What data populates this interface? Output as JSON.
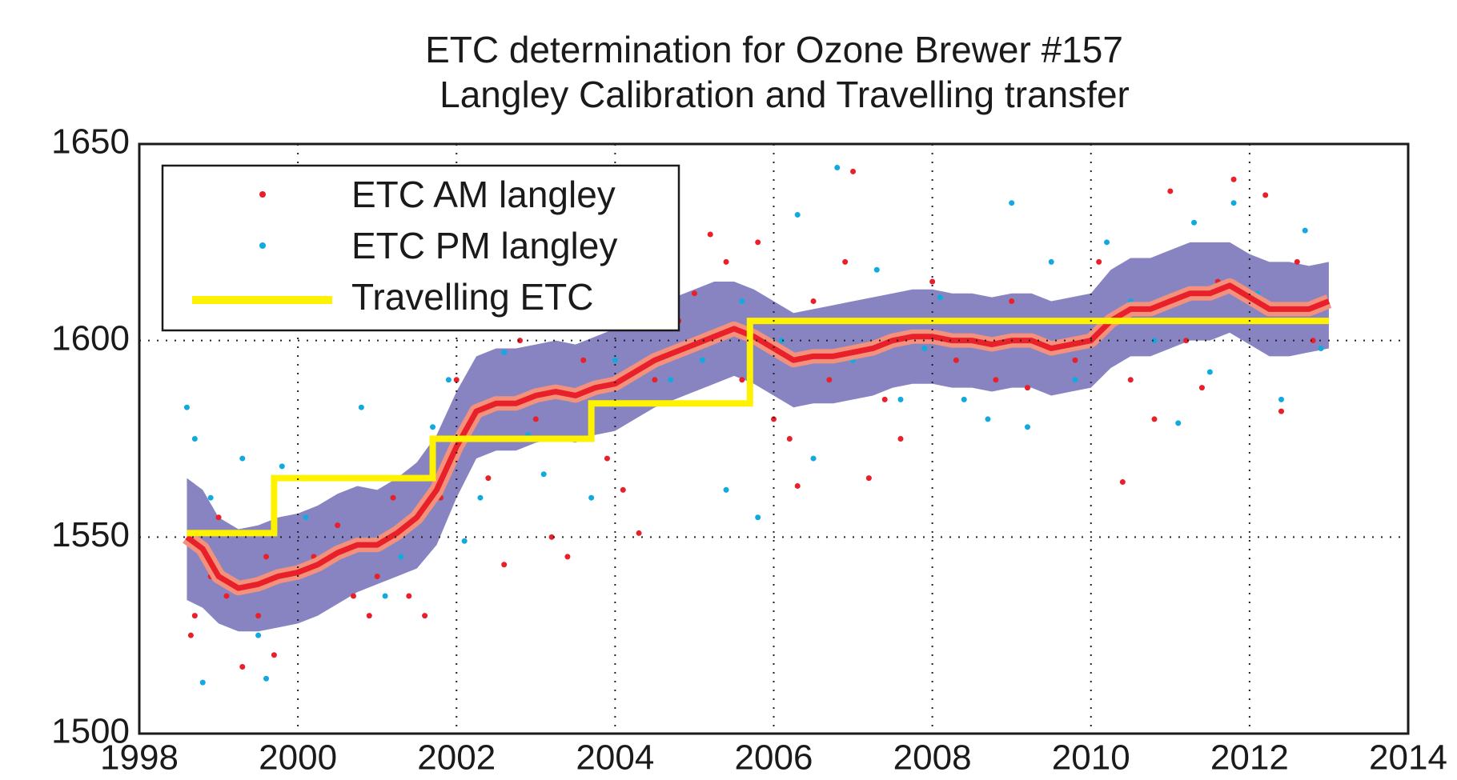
{
  "chart_data": {
    "type": "scatter",
    "title": [
      "ETC determination for Ozone Brewer #157",
      "Langley Calibration  and Travelling transfer"
    ],
    "xlim": [
      1998,
      2014
    ],
    "xticks": [
      1998,
      2000,
      2002,
      2004,
      2006,
      2008,
      2010,
      2012,
      2014
    ],
    "ylim": [
      1500,
      1650
    ],
    "yticks": [
      1500,
      1550,
      1600,
      1650
    ],
    "grid": true,
    "legend": "upper left",
    "band": {
      "color": "#8884c2",
      "x": [
        1998.6,
        1998.8,
        1999.0,
        1999.25,
        1999.5,
        1999.75,
        2000.0,
        2000.25,
        2000.5,
        2000.75,
        2001.0,
        2001.25,
        2001.5,
        2001.75,
        2002.0,
        2002.25,
        2002.5,
        2002.75,
        2003.0,
        2003.25,
        2003.5,
        2003.75,
        2004.0,
        2004.25,
        2004.5,
        2004.75,
        2005.0,
        2005.25,
        2005.5,
        2005.75,
        2006.0,
        2006.25,
        2006.5,
        2006.75,
        2007.0,
        2007.25,
        2007.5,
        2007.75,
        2008.0,
        2008.25,
        2008.5,
        2008.75,
        2009.0,
        2009.25,
        2009.5,
        2009.75,
        2010.0,
        2010.25,
        2010.5,
        2010.75,
        2011.0,
        2011.25,
        2011.5,
        2011.75,
        2012.0,
        2012.25,
        2012.5,
        2012.75,
        2013.0
      ],
      "upper": [
        1565,
        1562,
        1555,
        1552,
        1553,
        1555,
        1556,
        1558,
        1561,
        1563,
        1562,
        1565,
        1569,
        1576,
        1587,
        1596,
        1598,
        1598,
        1599,
        1600,
        1599,
        1601,
        1603,
        1606,
        1609,
        1611,
        1613,
        1615,
        1615,
        1613,
        1610,
        1607,
        1608,
        1609,
        1610,
        1611,
        1612,
        1613,
        1613,
        1612,
        1612,
        1611,
        1612,
        1612,
        1610,
        1611,
        1612,
        1618,
        1621,
        1621,
        1623,
        1625,
        1625,
        1625,
        1622,
        1620,
        1620,
        1619,
        1620
      ],
      "lower": [
        1534,
        1532,
        1528,
        1526,
        1526,
        1527,
        1528,
        1530,
        1533,
        1536,
        1538,
        1540,
        1542,
        1548,
        1560,
        1570,
        1572,
        1572,
        1574,
        1575,
        1574,
        1576,
        1577,
        1580,
        1583,
        1585,
        1587,
        1589,
        1591,
        1589,
        1586,
        1583,
        1584,
        1584,
        1585,
        1586,
        1588,
        1589,
        1589,
        1588,
        1588,
        1587,
        1588,
        1588,
        1586,
        1587,
        1588,
        1593,
        1596,
        1596,
        1598,
        1600,
        1600,
        1602,
        1599,
        1596,
        1596,
        1597,
        1598
      ]
    },
    "mean": {
      "color": "#e8202a",
      "x": [
        1998.6,
        1998.8,
        1999.0,
        1999.25,
        1999.5,
        1999.75,
        2000.0,
        2000.25,
        2000.5,
        2000.75,
        2001.0,
        2001.25,
        2001.5,
        2001.75,
        2002.0,
        2002.25,
        2002.5,
        2002.75,
        2003.0,
        2003.25,
        2003.5,
        2003.75,
        2004.0,
        2004.25,
        2004.5,
        2004.75,
        2005.0,
        2005.25,
        2005.5,
        2005.75,
        2006.0,
        2006.25,
        2006.5,
        2006.75,
        2007.0,
        2007.25,
        2007.5,
        2007.75,
        2008.0,
        2008.25,
        2008.5,
        2008.75,
        2009.0,
        2009.25,
        2009.5,
        2009.75,
        2010.0,
        2010.25,
        2010.5,
        2010.75,
        2011.0,
        2011.25,
        2011.5,
        2011.75,
        2012.0,
        2012.25,
        2012.5,
        2012.75,
        2013.0
      ],
      "values": [
        1550,
        1547,
        1540,
        1537,
        1538,
        1540,
        1541,
        1543,
        1546,
        1548,
        1548,
        1551,
        1555,
        1562,
        1573,
        1582,
        1584,
        1584,
        1586,
        1587,
        1586,
        1588,
        1589,
        1592,
        1595,
        1597,
        1599,
        1601,
        1603,
        1601,
        1598,
        1595,
        1596,
        1596,
        1597,
        1598,
        1600,
        1601,
        1601,
        1600,
        1600,
        1599,
        1600,
        1600,
        1598,
        1599,
        1600,
        1605,
        1608,
        1608,
        1610,
        1612,
        1612,
        1614,
        1611,
        1608,
        1608,
        1608,
        1610
      ]
    },
    "series": [
      {
        "name": "ETC AM langley",
        "type": "scatter",
        "color": "#e8202a",
        "x": [
          1998.65,
          1998.7,
          1998.8,
          1998.9,
          1999.0,
          1999.1,
          1999.3,
          1999.5,
          1999.6,
          1999.7,
          2000.2,
          2000.5,
          2000.7,
          2000.9,
          2001.0,
          2001.2,
          2001.4,
          2001.6,
          2001.8,
          2002.0,
          2002.2,
          2002.4,
          2002.6,
          2002.8,
          2003.0,
          2003.2,
          2003.4,
          2003.6,
          2003.9,
          2004.1,
          2004.3,
          2004.5,
          2004.8,
          2005.0,
          2005.2,
          2005.4,
          2005.6,
          2005.8,
          2006.0,
          2006.2,
          2006.3,
          2006.5,
          2006.7,
          2006.9,
          2007.0,
          2007.2,
          2007.4,
          2007.6,
          2007.8,
          2008.0,
          2008.3,
          2008.6,
          2008.8,
          2009.0,
          2009.2,
          2009.5,
          2009.8,
          2010.1,
          2010.4,
          2010.5,
          2010.8,
          2011.0,
          2011.2,
          2011.4,
          2011.6,
          2011.8,
          2012.0,
          2012.2,
          2012.4,
          2012.6,
          2012.8,
          2012.95
        ],
        "values": [
          1525,
          1530,
          1545,
          1540,
          1555,
          1535,
          1517,
          1530,
          1545,
          1520,
          1545,
          1553,
          1535,
          1530,
          1540,
          1560,
          1535,
          1530,
          1560,
          1590,
          1575,
          1565,
          1543,
          1600,
          1580,
          1550,
          1545,
          1595,
          1570,
          1562,
          1551,
          1590,
          1605,
          1612,
          1627,
          1620,
          1590,
          1625,
          1580,
          1575,
          1563,
          1610,
          1590,
          1620,
          1643,
          1565,
          1585,
          1575,
          1605,
          1615,
          1595,
          1600,
          1590,
          1610,
          1588,
          1605,
          1595,
          1620,
          1564,
          1590,
          1580,
          1638,
          1600,
          1588,
          1615,
          1641,
          1605,
          1637,
          1582,
          1620,
          1600,
          1610
        ]
      },
      {
        "name": "ETC PM langley",
        "type": "scatter",
        "color": "#12a9e1",
        "x": [
          1998.6,
          1998.7,
          1998.8,
          1998.9,
          1999.1,
          1999.3,
          1999.5,
          1999.6,
          1999.8,
          2000.1,
          2000.4,
          2000.8,
          2001.1,
          2001.3,
          2001.7,
          2001.9,
          2002.1,
          2002.3,
          2002.6,
          2002.9,
          2003.1,
          2003.4,
          2003.7,
          2004.0,
          2004.4,
          2004.7,
          2005.1,
          2005.4,
          2005.6,
          2005.8,
          2006.1,
          2006.3,
          2006.5,
          2006.8,
          2007.0,
          2007.3,
          2007.6,
          2007.9,
          2008.1,
          2008.4,
          2008.7,
          2009.0,
          2009.2,
          2009.5,
          2009.8,
          2010.2,
          2010.5,
          2010.8,
          2011.1,
          2011.3,
          2011.5,
          2011.8,
          2012.1,
          2012.4,
          2012.7,
          2012.9
        ],
        "values": [
          1583,
          1575,
          1513,
          1560,
          1540,
          1570,
          1525,
          1514,
          1568,
          1555,
          1545,
          1583,
          1535,
          1545,
          1578,
          1590,
          1549,
          1560,
          1597,
          1576,
          1566,
          1585,
          1560,
          1595,
          1608,
          1590,
          1595,
          1562,
          1610,
          1555,
          1600,
          1632,
          1570,
          1644,
          1595,
          1618,
          1585,
          1598,
          1611,
          1585,
          1580,
          1635,
          1578,
          1620,
          1590,
          1625,
          1610,
          1600,
          1579,
          1630,
          1592,
          1635,
          1612,
          1585,
          1628,
          1598
        ]
      },
      {
        "name": "Travelling ETC",
        "type": "line",
        "color": "#fff200",
        "x": [
          1998.6,
          1999.7,
          1999.7,
          2001.7,
          2001.7,
          2003.7,
          2003.7,
          2005.7,
          2005.7,
          2013.0
        ],
        "values": [
          1551,
          1551,
          1565,
          1565,
          1575,
          1575,
          1584,
          1584,
          1605,
          1605
        ]
      }
    ]
  }
}
